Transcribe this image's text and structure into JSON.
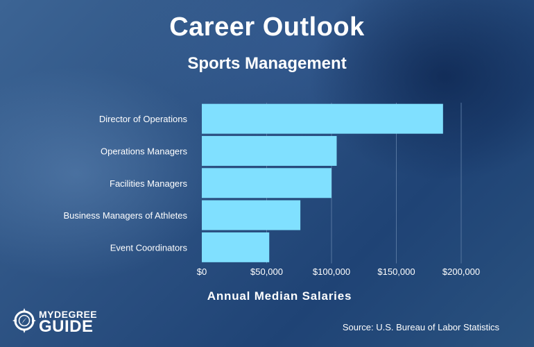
{
  "logo": {
    "line1": "MYDEGREE",
    "line2": "GUIDE"
  },
  "source": "Source: U.S. Bureau of Labor Statistics",
  "colors": {
    "bar": "#80e0ff",
    "grid": "#5676a0",
    "text": "#ffffff"
  },
  "chart_data": {
    "type": "bar",
    "orientation": "horizontal",
    "title": "Career Outlook",
    "subtitle": "Sports Management",
    "xlabel": "Annual Median Salaries",
    "categories": [
      "Director of Operations",
      "Operations Managers",
      "Facilities Managers",
      "Business Managers of Athletes",
      "Event Coordinators"
    ],
    "values": [
      186000,
      104000,
      100000,
      76000,
      52000
    ],
    "xlim": [
      0,
      200000
    ],
    "xticks": [
      0,
      50000,
      100000,
      150000,
      200000
    ],
    "xtick_labels": [
      "$0",
      "$50,000",
      "$100,000",
      "$150,000",
      "$200,000"
    ],
    "grid": true,
    "legend": false
  }
}
